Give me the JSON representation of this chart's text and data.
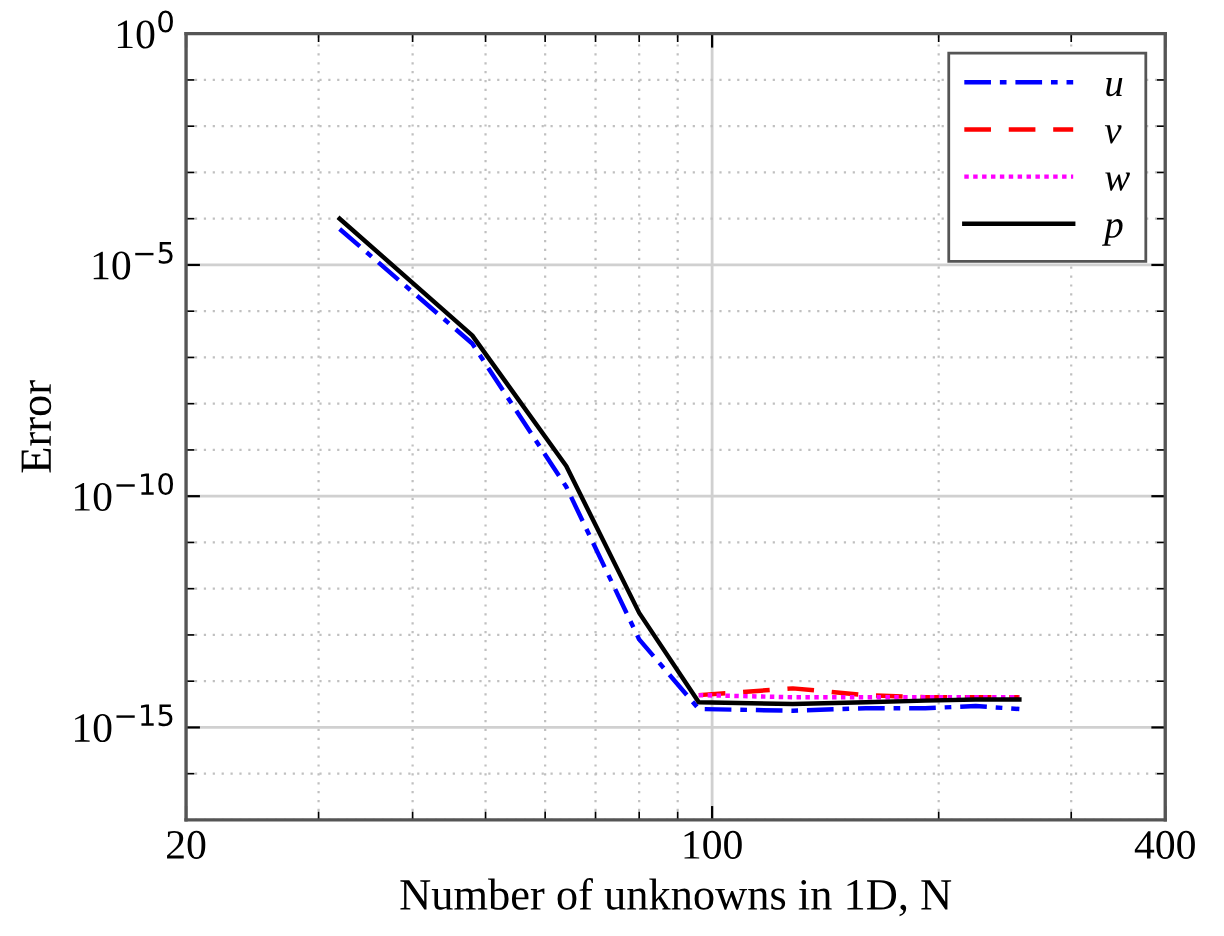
{
  "chart_data": {
    "type": "line",
    "xlabel": "Number of unknowns in 1D, N",
    "ylabel": "Error",
    "log": "xy",
    "grid": true,
    "legend": "top right",
    "marker": "none",
    "xlim": [
      20,
      400
    ],
    "xticks": [
      20,
      100,
      400
    ],
    "ylim": [
      1e-17,
      1
    ],
    "yticks": [
      {
        "value": 1,
        "label": "10$^{0}$"
      },
      {
        "value": 1e-05,
        "label": "10$^{−5}$"
      },
      {
        "value": 1e-10,
        "label": "10$^{−10}$"
      },
      {
        "value": 1e-15,
        "label": "10$^{−15}$"
      }
    ],
    "x": [
      32,
      48,
      64,
      80,
      96,
      128,
      160,
      192,
      224,
      256
    ],
    "series": [
      {
        "name": "u",
        "color": "#0000ff",
        "line_style": "dashdot",
        "values": [
          6e-05,
          2e-07,
          1.6e-10,
          8e-14,
          2.5e-15,
          2.3e-15,
          2.6e-15,
          2.6e-15,
          2.9e-15,
          2.5e-15
        ]
      },
      {
        "name": "v",
        "color": "#ff0000",
        "line_style": "dashed",
        "values": [
          null,
          null,
          null,
          null,
          5e-15,
          7e-15,
          5e-15,
          4.5e-15,
          4.5e-15,
          4.5e-15
        ]
      },
      {
        "name": "w",
        "color": "#ff00ff",
        "line_style": "dotted",
        "values": [
          null,
          null,
          null,
          null,
          5e-15,
          4.5e-15,
          4.5e-15,
          4.5e-15,
          4.5e-15,
          4.5e-15
        ]
      },
      {
        "name": "p",
        "color": "#000000",
        "line_style": "solid",
        "values": [
          0.0001,
          3e-07,
          4.5e-10,
          3e-13,
          3.5e-15,
          3.2e-15,
          3.5e-15,
          3.8e-15,
          4e-15,
          4e-15
        ]
      }
    ]
  }
}
